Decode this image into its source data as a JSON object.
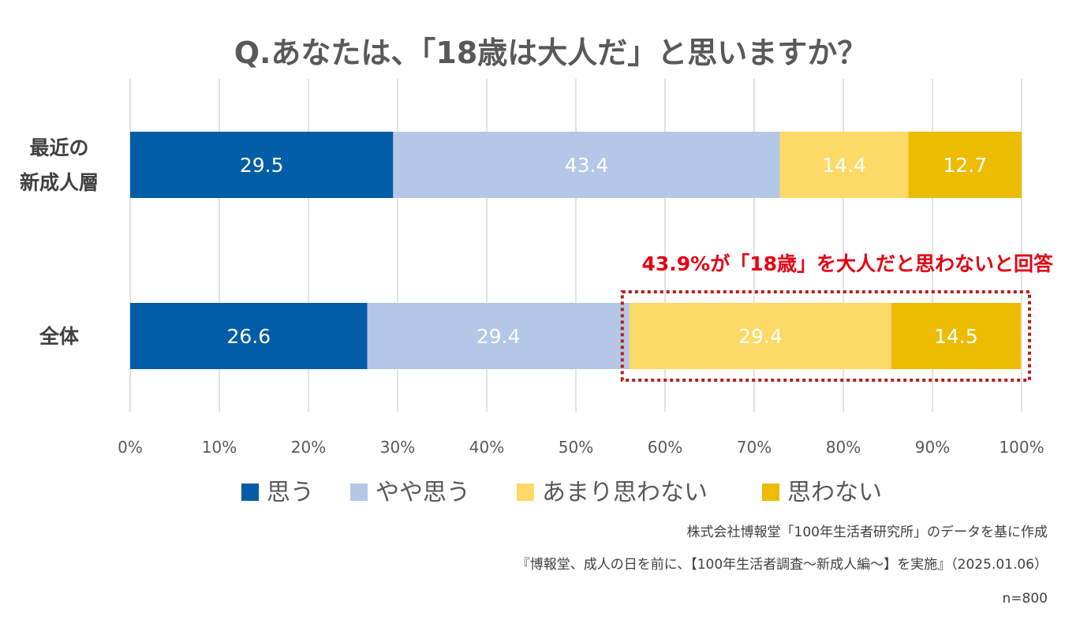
{
  "chart_data": {
    "type": "bar",
    "orientation": "horizontal",
    "stacked": true,
    "title": "Q.あなたは、「18歳は大人だ」と思いますか？",
    "categories": [
      {
        "lines": [
          "最近の",
          "新成人層"
        ]
      },
      {
        "lines": [
          "全体"
        ]
      }
    ],
    "series": [
      {
        "name": "思う",
        "color": "#005da6",
        "values": [
          29.5,
          26.6
        ]
      },
      {
        "name": "やや思う",
        "color": "#b4c7e7",
        "values": [
          43.4,
          29.4
        ]
      },
      {
        "name": "あまり思わない",
        "color": "#fdd967",
        "values": [
          14.4,
          29.4
        ]
      },
      {
        "name": "思わない",
        "color": "#ecbc00",
        "values": [
          12.7,
          14.5
        ]
      }
    ],
    "xlim": [
      0,
      100
    ],
    "xticks": [
      "0%",
      "10%",
      "20%",
      "30%",
      "40%",
      "50%",
      "60%",
      "70%",
      "80%",
      "90%",
      "100%"
    ],
    "grid": true,
    "legend_position": "bottom",
    "annotation": {
      "text": "43.9%が「18歳」を大人だと思わないと回答",
      "color": "#e60012",
      "category_index": 1,
      "series_range": [
        2,
        3
      ]
    }
  },
  "footnotes": [
    "株式会社博報堂「100年生活者研究所」のデータを基に作成",
    "『博報堂、成人の日を前に、【100年生活者調査～新成人編～】を実施』（2025.01.06）",
    "n=800"
  ]
}
